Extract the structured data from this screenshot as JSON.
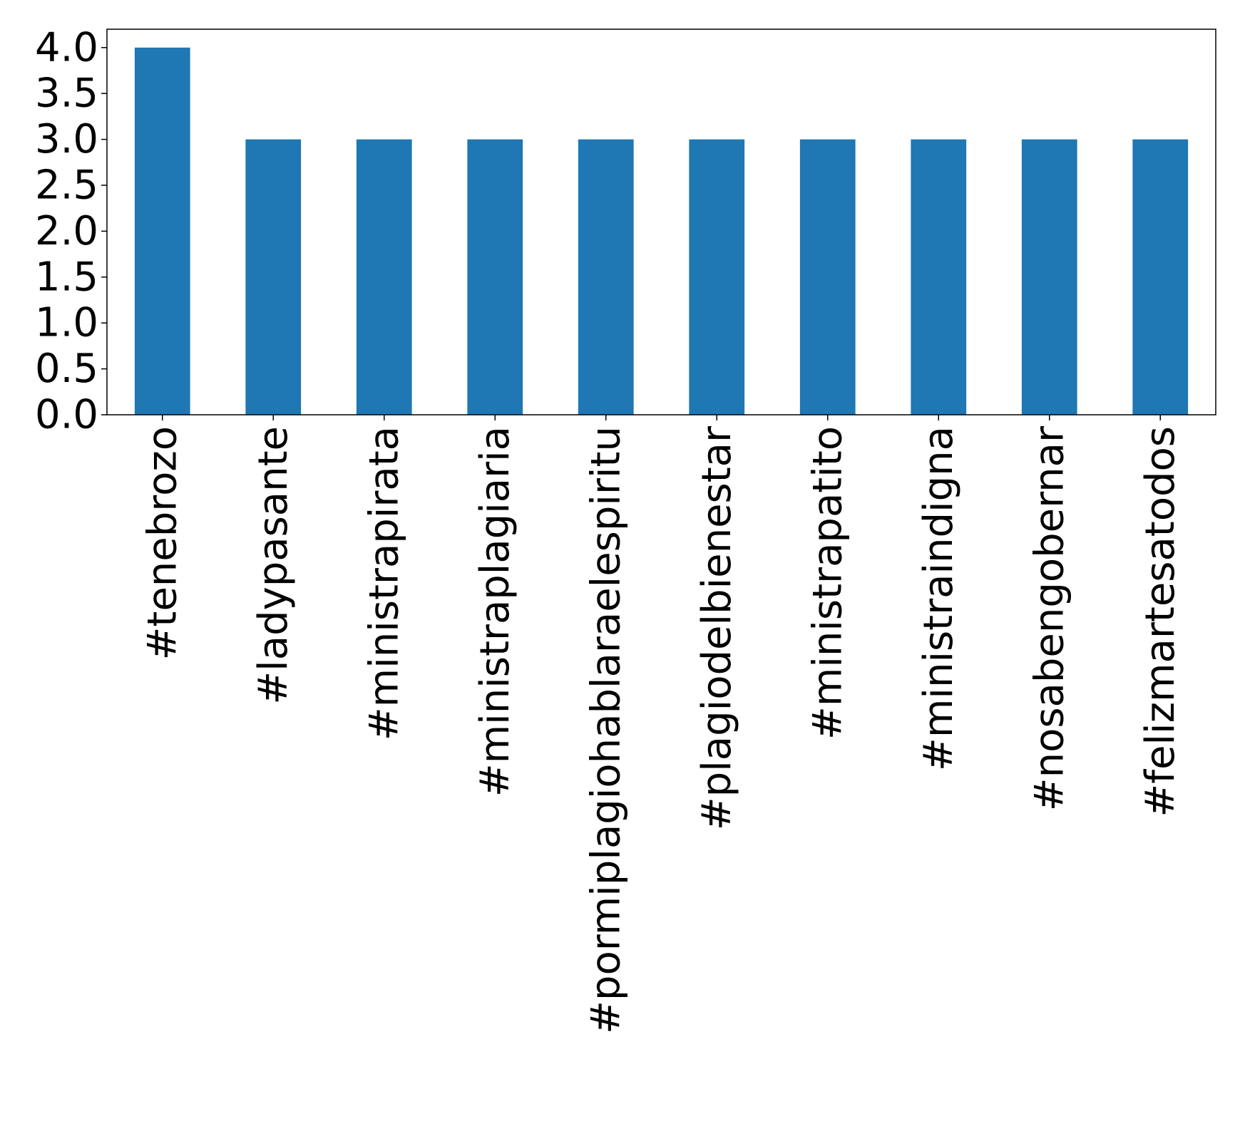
{
  "chart_data": {
    "type": "bar",
    "title": "",
    "xlabel": "",
    "ylabel": "",
    "categories": [
      "#tenebrozo",
      "#ladypasante",
      "#ministrapirata",
      "#ministraplagiaria",
      "#pormiplagiohablaraelespiritu",
      "#plagiodelbienestar",
      "#ministrapatito",
      "#ministraindigna",
      "#nosabengobernar",
      "#felizmartesatodos"
    ],
    "values": [
      4,
      3,
      3,
      3,
      3,
      3,
      3,
      3,
      3,
      3
    ],
    "ylim": [
      0,
      4.2
    ],
    "yticks": [
      0.0,
      0.5,
      1.0,
      1.5,
      2.0,
      2.5,
      3.0,
      3.5,
      4.0
    ],
    "ytick_labels": [
      "0.0",
      "0.5",
      "1.0",
      "1.5",
      "2.0",
      "2.5",
      "3.0",
      "3.5",
      "4.0"
    ],
    "grid": false,
    "legend": "none",
    "bar_color": "#1f77b4"
  }
}
